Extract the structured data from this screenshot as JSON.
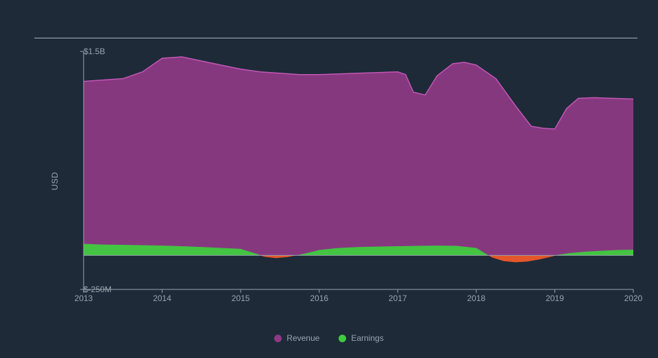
{
  "chart": {
    "type": "area",
    "background_color": "#1e2a38",
    "plot_background": "#1e2a38",
    "axis_color": "#9aa4af",
    "text_color": "#9aa4af",
    "top_rule_color": "#aab4bf",
    "ylabel": "USD",
    "x": {
      "min": 2013,
      "max": 2020,
      "ticks": [
        2013,
        2014,
        2015,
        2016,
        2017,
        2018,
        2019,
        2020
      ],
      "tick_labels": [
        "2013",
        "2014",
        "2015",
        "2016",
        "2017",
        "2018",
        "2019",
        "2020"
      ]
    },
    "y": {
      "min": -250,
      "max": 1500,
      "ticks": [
        -250,
        1500
      ],
      "tick_labels": [
        "$-250M",
        "$1.5B"
      ]
    },
    "series": [
      {
        "name": "Revenue",
        "fill": "#8f3985",
        "fill_opacity": 0.92,
        "stroke": "#c257b5",
        "stroke_width": 1.5,
        "points": [
          [
            2013.0,
            1280
          ],
          [
            2013.25,
            1290
          ],
          [
            2013.5,
            1300
          ],
          [
            2013.75,
            1350
          ],
          [
            2014.0,
            1450
          ],
          [
            2014.25,
            1460
          ],
          [
            2014.5,
            1430
          ],
          [
            2014.75,
            1400
          ],
          [
            2015.0,
            1370
          ],
          [
            2015.25,
            1350
          ],
          [
            2015.5,
            1340
          ],
          [
            2015.75,
            1330
          ],
          [
            2016.0,
            1330
          ],
          [
            2016.25,
            1335
          ],
          [
            2016.5,
            1340
          ],
          [
            2016.75,
            1345
          ],
          [
            2017.0,
            1350
          ],
          [
            2017.1,
            1330
          ],
          [
            2017.2,
            1200
          ],
          [
            2017.35,
            1180
          ],
          [
            2017.5,
            1320
          ],
          [
            2017.7,
            1410
          ],
          [
            2017.85,
            1420
          ],
          [
            2018.0,
            1400
          ],
          [
            2018.25,
            1300
          ],
          [
            2018.5,
            1100
          ],
          [
            2018.7,
            950
          ],
          [
            2018.85,
            935
          ],
          [
            2019.0,
            930
          ],
          [
            2019.15,
            1080
          ],
          [
            2019.3,
            1155
          ],
          [
            2019.5,
            1160
          ],
          [
            2019.75,
            1155
          ],
          [
            2020.0,
            1150
          ]
        ]
      },
      {
        "name": "Earnings",
        "positive_fill": "#3fcb3f",
        "negative_fill": "#ef5a2a",
        "fill_opacity": 0.95,
        "stroke_width": 0,
        "points": [
          [
            2013.0,
            85
          ],
          [
            2013.25,
            80
          ],
          [
            2013.5,
            78
          ],
          [
            2013.75,
            75
          ],
          [
            2014.0,
            72
          ],
          [
            2014.25,
            68
          ],
          [
            2014.5,
            62
          ],
          [
            2014.75,
            55
          ],
          [
            2015.0,
            48
          ],
          [
            2015.1,
            30
          ],
          [
            2015.2,
            12
          ],
          [
            2015.3,
            -10
          ],
          [
            2015.45,
            -20
          ],
          [
            2015.6,
            -12
          ],
          [
            2015.75,
            5
          ],
          [
            2015.9,
            25
          ],
          [
            2016.0,
            40
          ],
          [
            2016.25,
            55
          ],
          [
            2016.5,
            62
          ],
          [
            2016.75,
            65
          ],
          [
            2017.0,
            68
          ],
          [
            2017.25,
            70
          ],
          [
            2017.5,
            72
          ],
          [
            2017.75,
            70
          ],
          [
            2018.0,
            55
          ],
          [
            2018.1,
            20
          ],
          [
            2018.2,
            -15
          ],
          [
            2018.35,
            -42
          ],
          [
            2018.5,
            -50
          ],
          [
            2018.65,
            -45
          ],
          [
            2018.8,
            -30
          ],
          [
            2018.95,
            -10
          ],
          [
            2019.05,
            5
          ],
          [
            2019.2,
            18
          ],
          [
            2019.4,
            28
          ],
          [
            2019.6,
            34
          ],
          [
            2019.8,
            40
          ],
          [
            2020.0,
            42
          ]
        ]
      }
    ],
    "legend": [
      "Revenue",
      "Earnings"
    ],
    "legend_colors": [
      "#8f3985",
      "#3fcb3f"
    ]
  }
}
